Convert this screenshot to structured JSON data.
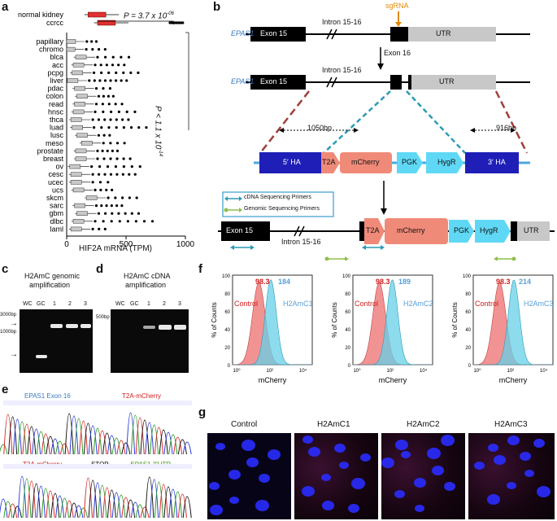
{
  "panels": {
    "a": "a",
    "b": "b",
    "c": "c",
    "d": "d",
    "e": "e",
    "f": "f",
    "g": "g"
  },
  "panel_a": {
    "chart_data": {
      "type": "boxplot",
      "top_groups": [
        "normal kidney",
        "ccrcc"
      ],
      "groups": [
        "papillary",
        "chromo",
        "blca",
        "acc",
        "pcpg",
        "liver",
        "pdac",
        "colon",
        "read",
        "hnsc",
        "thca",
        "luad",
        "lusc",
        "meso",
        "prostate",
        "breast",
        "ov",
        "cesc",
        "ucec",
        "ucs",
        "skcm",
        "sarc",
        "gbm",
        "dlbc",
        "laml"
      ],
      "medians": {
        "normal kidney": 240,
        "ccrcc": 320,
        "papillary": 20,
        "chromo": 15,
        "blca": 110,
        "acc": 90,
        "pcpg": 80,
        "liver": 40,
        "pdac": 100,
        "colon": 120,
        "read": 100,
        "hnsc": 90,
        "thca": 70,
        "luad": 80,
        "lusc": 120,
        "meso": 160,
        "prostate": 110,
        "breast": 110,
        "ov": 60,
        "cesc": 70,
        "ucec": 70,
        "ucs": 90,
        "skcm": 200,
        "sarc": 100,
        "gbm": 120,
        "dlbc": 90,
        "laml": 70
      },
      "xlabel": "HIF2A mRNA (TPM)",
      "xticks": [
        "0",
        "500",
        "1000"
      ],
      "xlim": [
        0,
        1000
      ],
      "p_top": "P = 3.7 x 10",
      "p_top_exp": "-06",
      "p_side": "P < 1.1 x 10",
      "p_side_exp": "-14"
    }
  },
  "panel_b": {
    "gene": "EPAS1",
    "exon15": "Exon 15",
    "intron": "Intron 15-16",
    "sgrna": "sgRNA",
    "exon16": "Exon 16",
    "utr": "UTR",
    "bp_left": "1050bp",
    "bp_right": "916bp",
    "ha5": "5′ HA",
    "t2a": "T2A",
    "mcherry": "mCherry",
    "pgk": "PGK",
    "hygr": "HygR",
    "ha3": "3′ HA",
    "legend_cdna": "cDNA Sequencing Primers",
    "legend_genomic": "Genomic Sequencing Primers"
  },
  "panel_c": {
    "title1": "H2AmC genomic",
    "title2": "amplification",
    "lanes": [
      "WC",
      "GC",
      "1",
      "2",
      "3"
    ],
    "m1": "3000bp",
    "m2": "1000bp"
  },
  "panel_d": {
    "title1": "H2AmC cDNA",
    "title2": "amplification",
    "lanes": [
      "WC",
      "GC",
      "1",
      "2",
      "3"
    ],
    "m1": "500bp"
  },
  "panel_e": {
    "top_l": "EPAS1 Exon 16",
    "top_r": "T2A-mCherry",
    "bot_l": "T2A-mCherry",
    "bot_m": "STOP",
    "bot_r": "EPAS1 3′UTR"
  },
  "panel_f": {
    "chart_data": [
      {
        "type": "histogram",
        "control": "Control",
        "sample": "H2AmC1",
        "control_val": "98.3",
        "sample_val": "184",
        "ylabel": "% of Counts",
        "xlabel": "mCherry",
        "yticks": [
          "0",
          "20",
          "40",
          "60",
          "80",
          "100"
        ],
        "xticks": [
          "10⁰",
          "10²",
          "10⁴"
        ]
      },
      {
        "type": "histogram",
        "control": "Control",
        "sample": "H2AmC2",
        "control_val": "98.3",
        "sample_val": "189",
        "ylabel": "% of Counts",
        "xlabel": "mCherry",
        "yticks": [
          "0",
          "20",
          "40",
          "60",
          "80",
          "100"
        ],
        "xticks": [
          "10⁰",
          "10²",
          "10⁴"
        ]
      },
      {
        "type": "histogram",
        "control": "Control",
        "sample": "H2AmC3",
        "control_val": "98.3",
        "sample_val": "214",
        "ylabel": "% of Counts",
        "xlabel": "mCherry",
        "yticks": [
          "0",
          "20",
          "40",
          "60",
          "80",
          "100"
        ],
        "xticks": [
          "10⁰",
          "10²",
          "10⁴"
        ]
      }
    ],
    "colors": {
      "control": "#f08080",
      "sample": "#66d0e8"
    }
  },
  "panel_g": {
    "labels": [
      "Control",
      "H2AmC1",
      "H2AmC2",
      "H2AmC3"
    ]
  }
}
